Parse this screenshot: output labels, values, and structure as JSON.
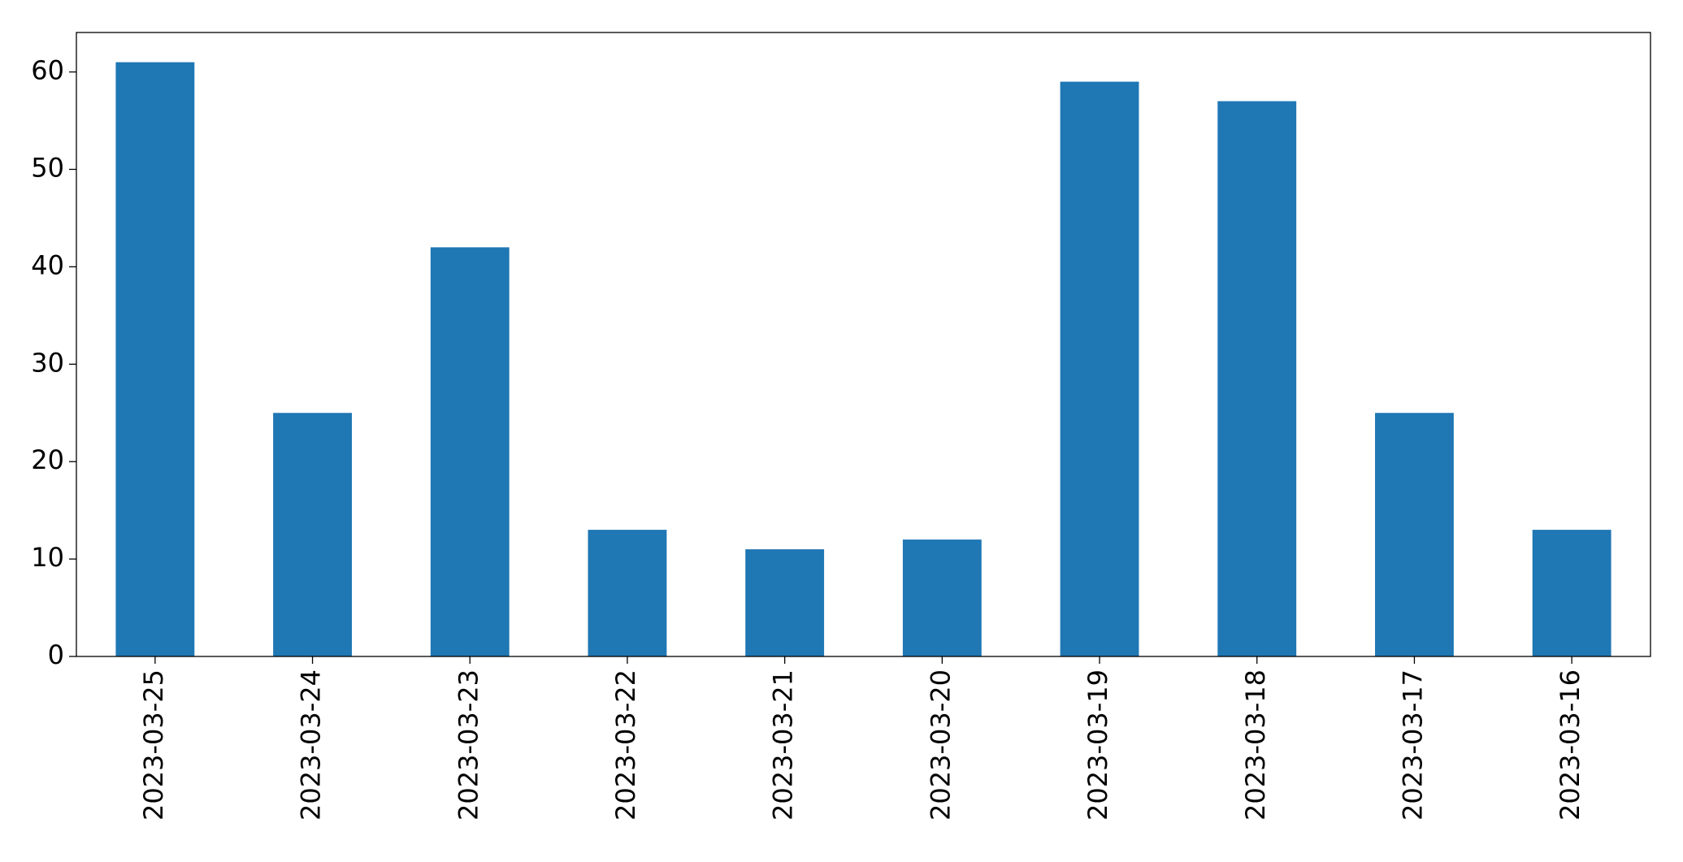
{
  "chart_data": {
    "type": "bar",
    "categories": [
      "2023-03-25",
      "2023-03-24",
      "2023-03-23",
      "2023-03-22",
      "2023-03-21",
      "2023-03-20",
      "2023-03-19",
      "2023-03-18",
      "2023-03-17",
      "2023-03-16"
    ],
    "values": [
      61,
      25,
      42,
      13,
      11,
      12,
      59,
      57,
      25,
      13
    ],
    "color": "#1f77b4",
    "ylim": [
      0,
      64.05
    ],
    "yticks": [
      0,
      10,
      20,
      30,
      40,
      50,
      60
    ],
    "grid": false
  }
}
